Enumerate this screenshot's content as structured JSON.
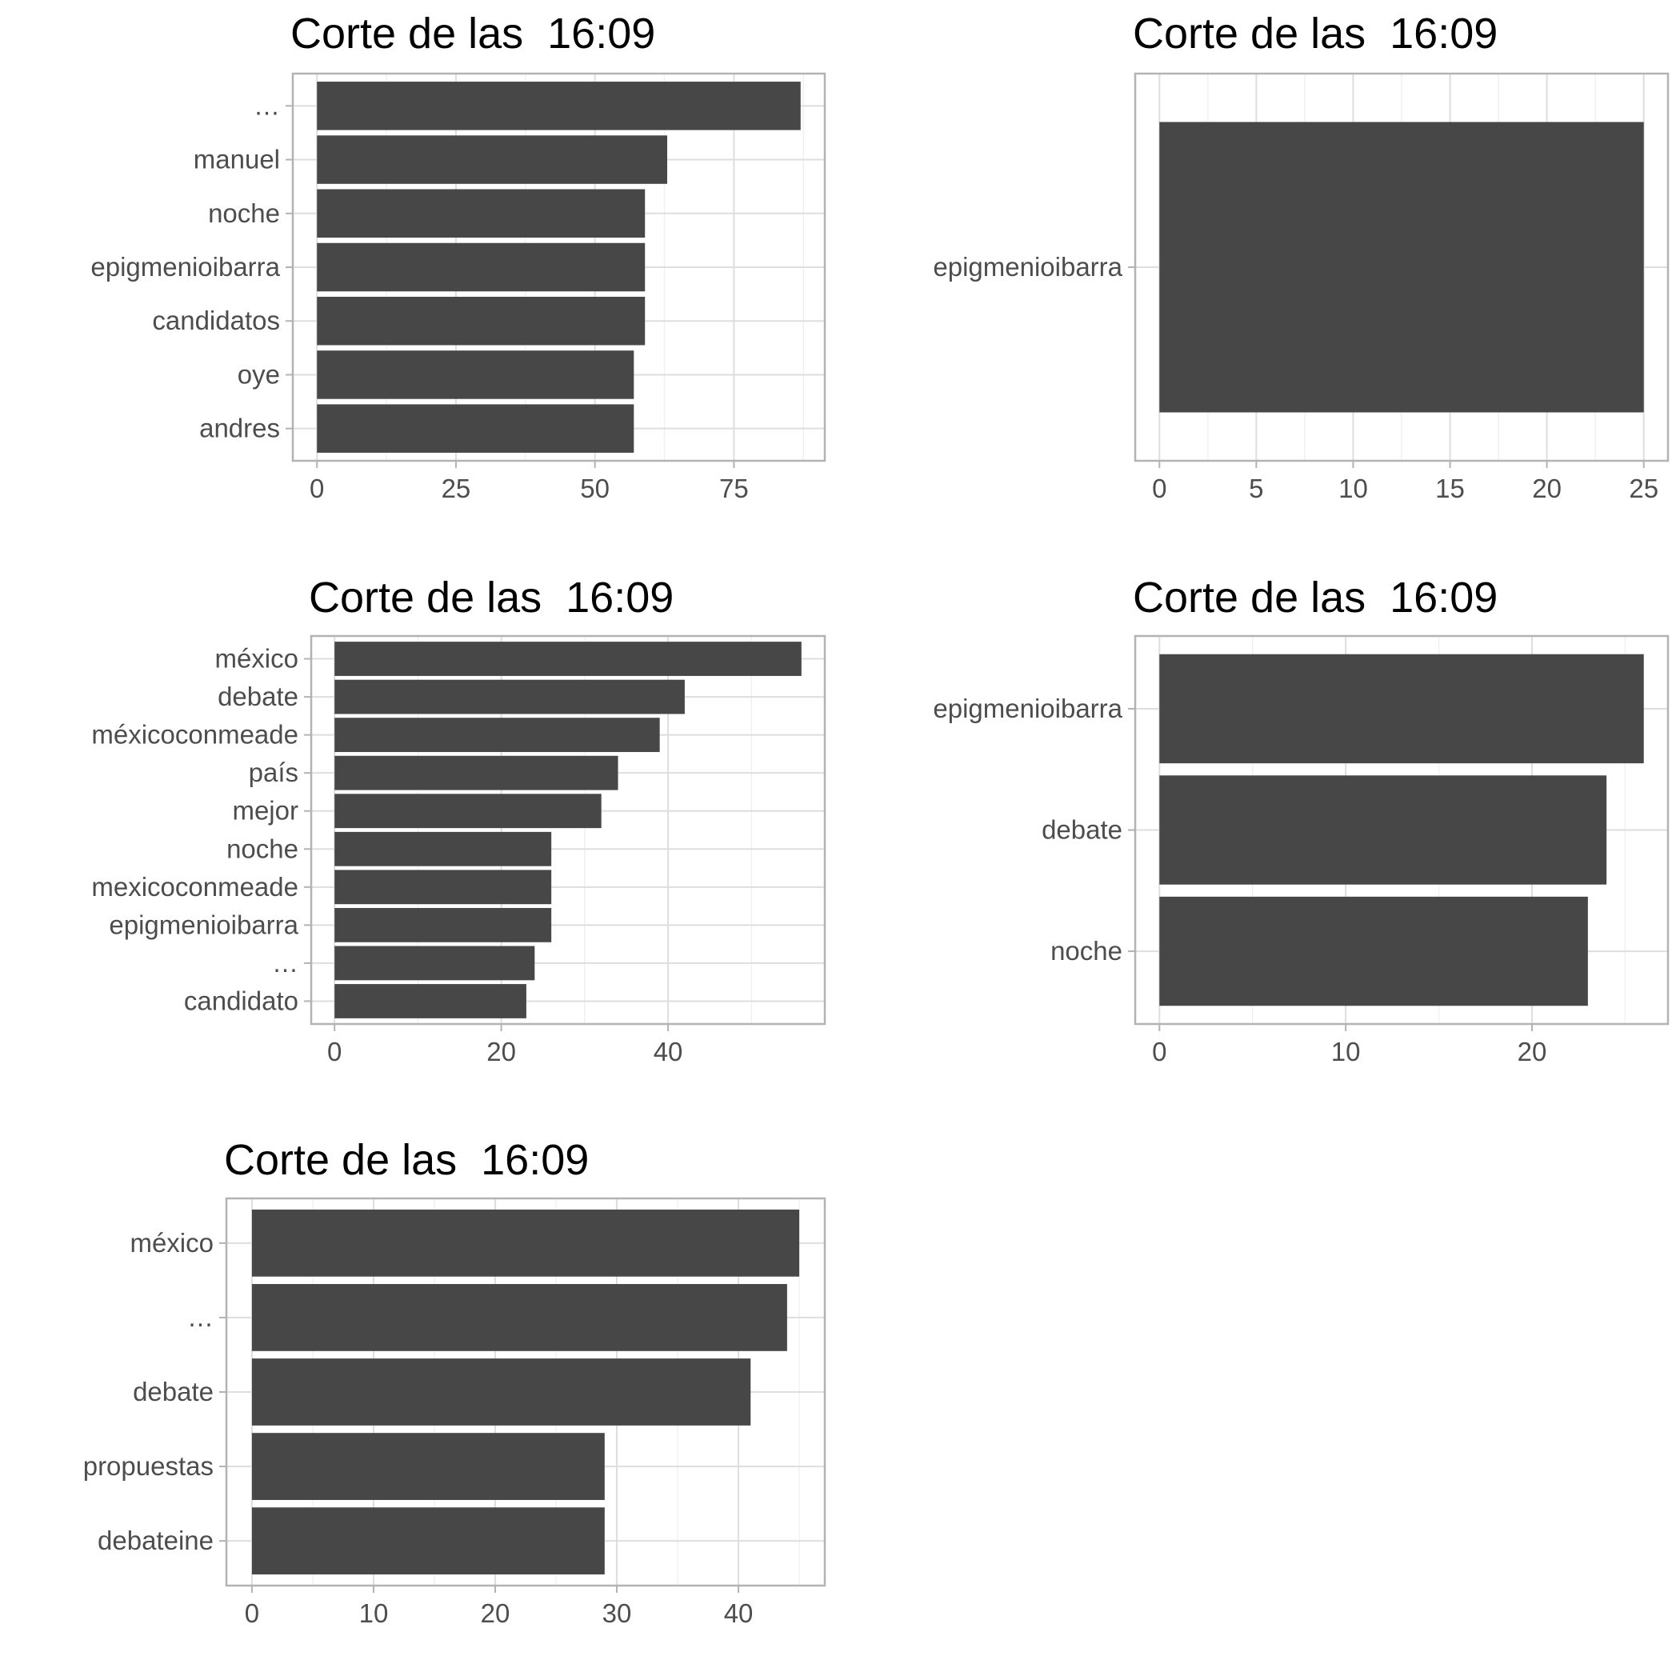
{
  "colors": {
    "bar": "#474747",
    "grid_major": "#dedede",
    "grid_minor": "#efefef",
    "frame": "#b3b3b3",
    "axis_text": "#4d4d4d",
    "title": "#000000"
  },
  "chart_data": [
    {
      "type": "bar",
      "orientation": "horizontal",
      "title": "Corte de las  16:09",
      "categories": [
        "…",
        "manuel",
        "noche",
        "epigmenioibarra",
        "candidatos",
        "oye",
        "andres"
      ],
      "values": [
        87,
        63,
        59,
        59,
        59,
        57,
        57
      ],
      "xticks": [
        0,
        25,
        50,
        75
      ],
      "xlim": [
        -4.35,
        91.35
      ],
      "grid": true
    },
    {
      "type": "bar",
      "orientation": "horizontal",
      "title": "Corte de las  16:09",
      "categories": [
        "epigmenioibarra"
      ],
      "values": [
        25
      ],
      "xticks": [
        0,
        5,
        10,
        15,
        20,
        25
      ],
      "xlim": [
        -1.25,
        26.25
      ],
      "grid": true
    },
    {
      "type": "bar",
      "orientation": "horizontal",
      "title": "Corte de las  16:09",
      "categories": [
        "méxico",
        "debate",
        "méxicoconmeade",
        "país",
        "mejor",
        "noche",
        "mexicoconmeade",
        "epigmenioibarra",
        "…",
        "candidato"
      ],
      "values": [
        56,
        42,
        39,
        34,
        32,
        26,
        26,
        26,
        24,
        23
      ],
      "xticks": [
        0,
        20,
        40
      ],
      "xlim": [
        -2.8,
        58.8
      ],
      "grid": true
    },
    {
      "type": "bar",
      "orientation": "horizontal",
      "title": "Corte de las  16:09",
      "categories": [
        "epigmenioibarra",
        "debate",
        "noche"
      ],
      "values": [
        26,
        24,
        23
      ],
      "xticks": [
        0,
        10,
        20
      ],
      "xlim": [
        -1.3,
        27.3
      ],
      "grid": true
    },
    {
      "type": "bar",
      "orientation": "horizontal",
      "title": "Corte de las  16:09",
      "categories": [
        "méxico",
        "…",
        "debate",
        "propuestas",
        "debateine"
      ],
      "values": [
        45,
        44,
        41,
        29,
        29
      ],
      "xticks": [
        0,
        10,
        20,
        30,
        40
      ],
      "xlim": [
        -2.1,
        47.1
      ],
      "grid": true
    }
  ]
}
